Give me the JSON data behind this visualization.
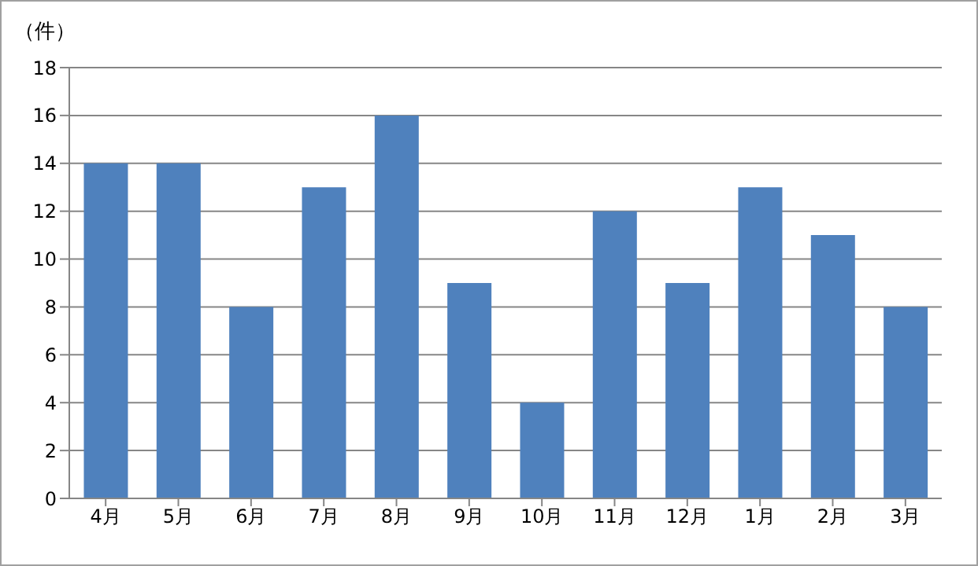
{
  "chart_data": {
    "type": "bar",
    "ylabel": "（件）",
    "categories": [
      "4月",
      "5月",
      "6月",
      "7月",
      "8月",
      "9月",
      "10月",
      "11月",
      "12月",
      "1月",
      "2月",
      "3月"
    ],
    "values": [
      14,
      14,
      8,
      13,
      16,
      9,
      4,
      12,
      9,
      13,
      11,
      8
    ],
    "color": "#4f81bd",
    "ylim": [
      0,
      18
    ],
    "yticks": [
      0,
      2,
      4,
      6,
      8,
      10,
      12,
      14,
      16,
      18
    ],
    "grid": "y"
  }
}
